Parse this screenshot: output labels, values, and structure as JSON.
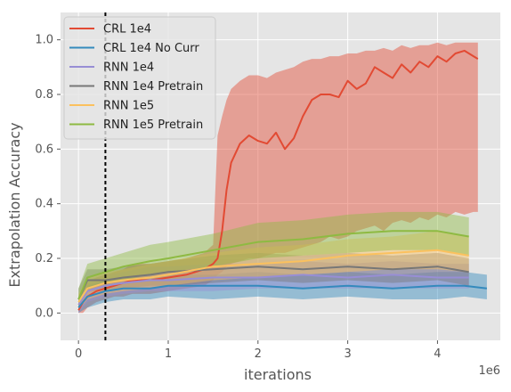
{
  "chart_data": {
    "type": "line",
    "title": "",
    "xlabel": "iterations",
    "ylabel": "Extrapolation Accuracy",
    "x_offset_label": "1e6",
    "xlim": [
      -0.2,
      4.7
    ],
    "ylim": [
      -0.1,
      1.1
    ],
    "xticks": [
      0,
      1,
      2,
      3,
      4
    ],
    "yticks": [
      0.0,
      0.2,
      0.4,
      0.6,
      0.8,
      1.0
    ],
    "grid": true,
    "legend_position": "top-left",
    "vline": {
      "x": 0.3,
      "style": "dashed",
      "color": "#000000"
    },
    "background": "#e5e5e5",
    "series": [
      {
        "name": "CRL 1e4",
        "color": "#E24A33",
        "x": [
          0.0,
          0.05,
          0.1,
          0.2,
          0.3,
          0.4,
          0.5,
          0.6,
          0.8,
          1.0,
          1.2,
          1.4,
          1.5,
          1.55,
          1.6,
          1.65,
          1.7,
          1.8,
          1.9,
          2.0,
          2.1,
          2.2,
          2.3,
          2.4,
          2.5,
          2.6,
          2.7,
          2.8,
          2.9,
          3.0,
          3.1,
          3.2,
          3.3,
          3.4,
          3.5,
          3.6,
          3.7,
          3.8,
          3.9,
          4.0,
          4.1,
          4.2,
          4.3,
          4.4,
          4.45
        ],
        "mean": [
          0.01,
          0.04,
          0.06,
          0.08,
          0.09,
          0.1,
          0.11,
          0.12,
          0.12,
          0.13,
          0.14,
          0.16,
          0.18,
          0.2,
          0.3,
          0.45,
          0.55,
          0.62,
          0.65,
          0.63,
          0.62,
          0.66,
          0.6,
          0.64,
          0.72,
          0.78,
          0.8,
          0.8,
          0.79,
          0.85,
          0.82,
          0.84,
          0.9,
          0.88,
          0.86,
          0.91,
          0.88,
          0.92,
          0.9,
          0.94,
          0.92,
          0.95,
          0.96,
          0.94,
          0.93
        ],
        "lower": [
          0.0,
          0.0,
          0.02,
          0.04,
          0.05,
          0.06,
          0.06,
          0.07,
          0.07,
          0.08,
          0.09,
          0.1,
          0.12,
          0.14,
          0.15,
          0.17,
          0.18,
          0.19,
          0.2,
          0.2,
          0.21,
          0.22,
          0.22,
          0.23,
          0.24,
          0.25,
          0.26,
          0.28,
          0.27,
          0.28,
          0.3,
          0.31,
          0.32,
          0.3,
          0.33,
          0.34,
          0.33,
          0.35,
          0.34,
          0.36,
          0.35,
          0.37,
          0.36,
          0.37,
          0.37
        ],
        "upper": [
          0.03,
          0.08,
          0.11,
          0.13,
          0.14,
          0.15,
          0.16,
          0.18,
          0.18,
          0.19,
          0.2,
          0.22,
          0.25,
          0.65,
          0.72,
          0.78,
          0.82,
          0.85,
          0.87,
          0.87,
          0.86,
          0.88,
          0.89,
          0.9,
          0.92,
          0.93,
          0.93,
          0.94,
          0.94,
          0.95,
          0.95,
          0.96,
          0.96,
          0.97,
          0.96,
          0.98,
          0.97,
          0.98,
          0.98,
          0.99,
          0.98,
          0.99,
          0.99,
          0.99,
          0.99
        ]
      },
      {
        "name": "CRL 1e4 No Curr",
        "color": "#348ABD",
        "x": [
          0.0,
          0.1,
          0.3,
          0.5,
          0.8,
          1.0,
          1.5,
          2.0,
          2.5,
          3.0,
          3.5,
          4.0,
          4.3,
          4.55
        ],
        "mean": [
          0.02,
          0.06,
          0.08,
          0.09,
          0.09,
          0.1,
          0.1,
          0.1,
          0.09,
          0.1,
          0.09,
          0.1,
          0.1,
          0.09
        ],
        "lower": [
          0.0,
          0.02,
          0.04,
          0.05,
          0.05,
          0.06,
          0.05,
          0.06,
          0.05,
          0.06,
          0.05,
          0.05,
          0.06,
          0.05
        ],
        "upper": [
          0.05,
          0.1,
          0.12,
          0.13,
          0.14,
          0.14,
          0.14,
          0.15,
          0.14,
          0.15,
          0.14,
          0.15,
          0.15,
          0.14
        ]
      },
      {
        "name": "RNN 1e4",
        "color": "#988ED5",
        "x": [
          0.0,
          0.1,
          0.3,
          0.5,
          0.8,
          1.0,
          1.5,
          2.0,
          2.5,
          3.0,
          3.5,
          4.0,
          4.35
        ],
        "mean": [
          0.03,
          0.08,
          0.1,
          0.11,
          0.12,
          0.12,
          0.13,
          0.13,
          0.14,
          0.13,
          0.14,
          0.13,
          0.13
        ],
        "lower": [
          0.0,
          0.04,
          0.06,
          0.07,
          0.08,
          0.08,
          0.08,
          0.09,
          0.09,
          0.09,
          0.09,
          0.09,
          0.09
        ],
        "upper": [
          0.06,
          0.12,
          0.14,
          0.15,
          0.17,
          0.17,
          0.18,
          0.18,
          0.19,
          0.18,
          0.19,
          0.18,
          0.18
        ]
      },
      {
        "name": "RNN 1e4 Pretrain",
        "color": "#777777",
        "x": [
          0.0,
          0.1,
          0.3,
          0.5,
          0.8,
          1.0,
          1.5,
          2.0,
          2.5,
          3.0,
          3.5,
          4.0,
          4.35
        ],
        "mean": [
          0.05,
          0.12,
          0.12,
          0.13,
          0.14,
          0.15,
          0.16,
          0.17,
          0.16,
          0.17,
          0.16,
          0.17,
          0.15
        ],
        "lower": [
          0.02,
          0.08,
          0.08,
          0.09,
          0.1,
          0.1,
          0.11,
          0.12,
          0.11,
          0.12,
          0.11,
          0.12,
          0.1
        ],
        "upper": [
          0.09,
          0.16,
          0.16,
          0.17,
          0.18,
          0.19,
          0.21,
          0.22,
          0.21,
          0.22,
          0.21,
          0.22,
          0.2
        ]
      },
      {
        "name": "RNN 1e5",
        "color": "#FBC15E",
        "x": [
          0.0,
          0.1,
          0.3,
          0.5,
          0.8,
          1.0,
          1.5,
          2.0,
          2.5,
          3.0,
          3.5,
          4.0,
          4.35
        ],
        "mean": [
          0.04,
          0.09,
          0.11,
          0.12,
          0.13,
          0.14,
          0.17,
          0.18,
          0.19,
          0.21,
          0.22,
          0.23,
          0.21
        ],
        "lower": [
          0.01,
          0.05,
          0.07,
          0.08,
          0.09,
          0.1,
          0.12,
          0.13,
          0.14,
          0.15,
          0.16,
          0.16,
          0.15
        ],
        "upper": [
          0.07,
          0.13,
          0.15,
          0.16,
          0.18,
          0.19,
          0.22,
          0.24,
          0.25,
          0.27,
          0.28,
          0.3,
          0.28
        ]
      },
      {
        "name": "RNN 1e5 Pretrain",
        "color": "#8EBA42",
        "x": [
          0.0,
          0.1,
          0.3,
          0.5,
          0.8,
          1.0,
          1.5,
          2.0,
          2.5,
          3.0,
          3.5,
          4.0,
          4.35
        ],
        "mean": [
          0.05,
          0.13,
          0.15,
          0.17,
          0.19,
          0.2,
          0.23,
          0.26,
          0.27,
          0.29,
          0.3,
          0.3,
          0.28
        ],
        "lower": [
          0.02,
          0.09,
          0.11,
          0.12,
          0.14,
          0.15,
          0.17,
          0.2,
          0.21,
          0.22,
          0.23,
          0.23,
          0.21
        ],
        "upper": [
          0.09,
          0.18,
          0.2,
          0.22,
          0.25,
          0.26,
          0.29,
          0.33,
          0.34,
          0.36,
          0.37,
          0.37,
          0.35
        ]
      }
    ]
  }
}
